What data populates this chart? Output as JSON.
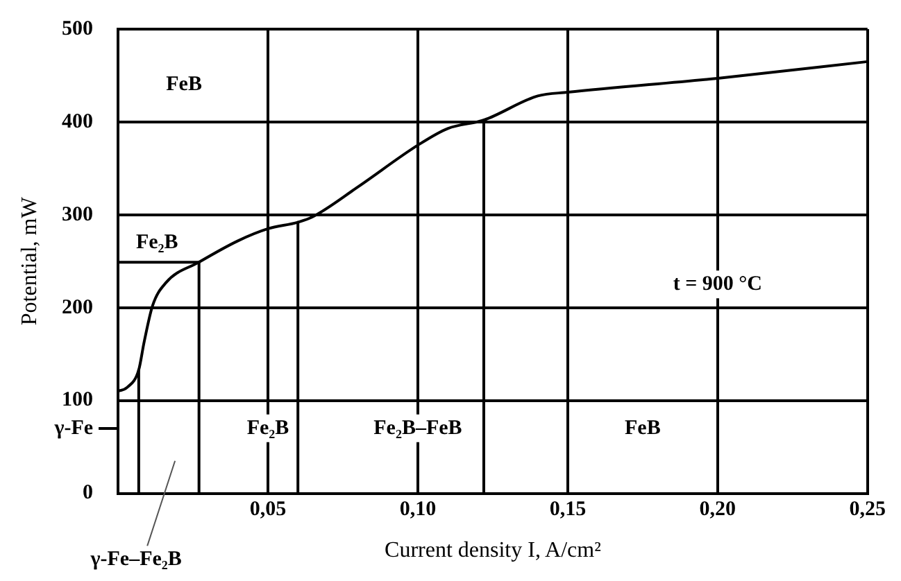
{
  "chart_data": {
    "type": "line",
    "xlabel": "Current density I, A/cm²",
    "ylabel": "Potential, mW",
    "xlim": [
      0,
      0.25
    ],
    "xticks": [
      {
        "value": 0,
        "label": null
      },
      {
        "value": 0.05,
        "label": "0,05"
      },
      {
        "value": 0.1,
        "label": "0,10"
      },
      {
        "value": 0.15,
        "label": "0,15"
      },
      {
        "value": 0.2,
        "label": "0,20"
      },
      {
        "value": 0.25,
        "label": "0,25"
      }
    ],
    "ylim": [
      0,
      500
    ],
    "yticks": [
      0,
      {
        "value": 70,
        "label": "γ-Fe"
      },
      100,
      200,
      300,
      400,
      500
    ],
    "grid": true,
    "legend": false,
    "marker": "none",
    "line_style": "solid",
    "series": [
      {
        "color": "#000000",
        "x": [
          0,
          0.003,
          0.0069,
          0.0087,
          0.0115,
          0.016,
          0.027,
          0.04,
          0.05,
          0.06,
          0.065,
          0.08,
          0.1,
          0.11,
          0.122,
          0.14,
          0.15,
          0.2,
          0.25
        ],
        "values": [
          110,
          114,
          133,
          163,
          202,
          227,
          249,
          272,
          285,
          292,
          298,
          330,
          375,
          393,
          402,
          428,
          432,
          447,
          465
        ]
      },
      {
        "color": "#000000",
        "x": [
          0.0069,
          0.0069
        ],
        "values": [
          0,
          133
        ]
      },
      {
        "color": "#000000",
        "x": [
          0.027,
          0.027
        ],
        "values": [
          0,
          249
        ]
      },
      {
        "color": "#000000",
        "x": [
          0,
          0.027
        ],
        "values": [
          249,
          249
        ]
      },
      {
        "color": "#000000",
        "x": [
          0.06,
          0.06
        ],
        "values": [
          0,
          292
        ]
      },
      {
        "color": "#000000",
        "x": [
          0.122,
          0.122
        ],
        "values": [
          0,
          402
        ]
      }
    ],
    "annotations": [
      "FeB",
      "Fe₂B",
      "Fe₂B",
      "Fe₂B–FeB",
      "FeB",
      "t = 900 °C",
      "γ-Fe–Fe₂B"
    ]
  }
}
